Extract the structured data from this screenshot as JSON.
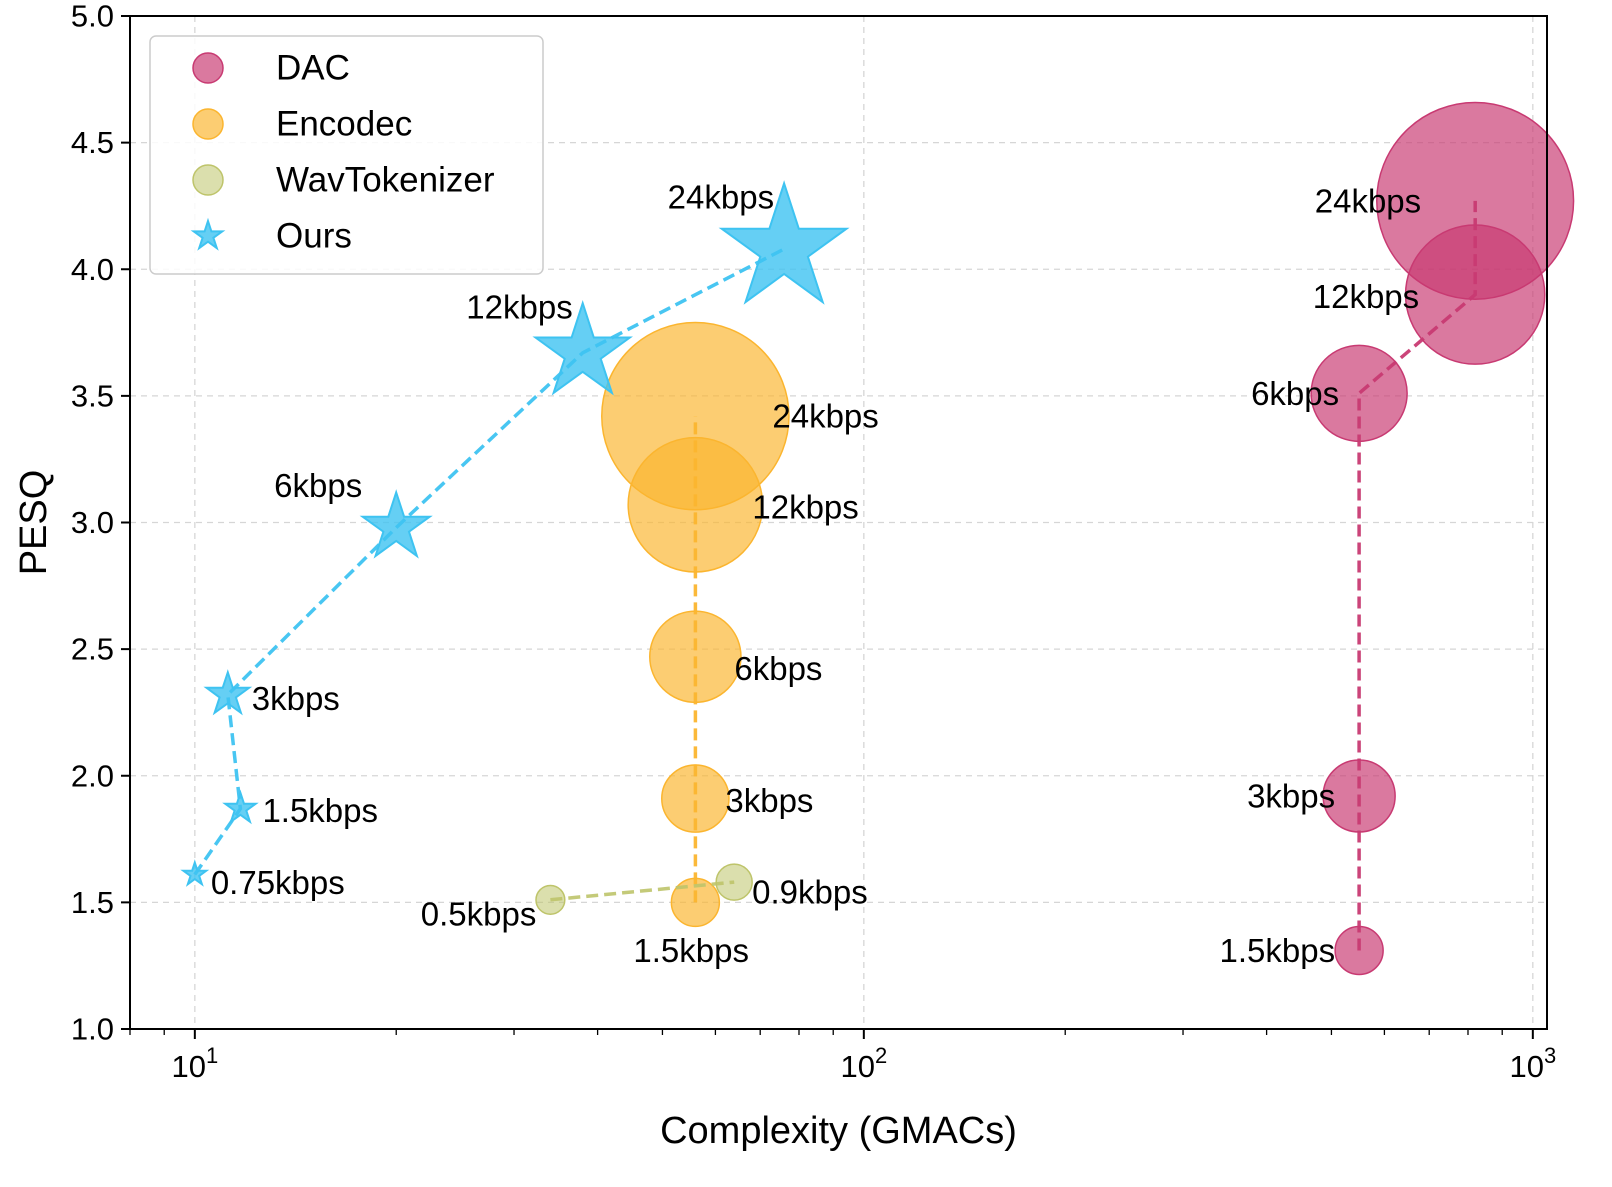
{
  "chart_data": {
    "type": "scatter",
    "title": "",
    "xlabel": "Complexity (GMACs)",
    "ylabel": "PESQ",
    "xscale": "log",
    "xlim": [
      8,
      1050
    ],
    "ylim": [
      1.0,
      5.0
    ],
    "yticks": [
      "1.0",
      "1.5",
      "2.0",
      "2.5",
      "3.0",
      "3.5",
      "4.0",
      "4.5",
      "5.0"
    ],
    "xticks": [
      {
        "value": 10,
        "base": "10",
        "exp": "1"
      },
      {
        "value": 100,
        "base": "10",
        "exp": "2"
      },
      {
        "value": 1000,
        "base": "10",
        "exp": "3"
      }
    ],
    "grid": true,
    "legend_position": "top-left",
    "series": [
      {
        "name": "DAC",
        "marker": "circle",
        "color": "#c83a72",
        "line": true,
        "points": [
          {
            "x": 550,
            "y": 1.31,
            "label": "1.5kbps",
            "size": 1.0
          },
          {
            "x": 550,
            "y": 1.92,
            "label": "3kbps",
            "size": 1.5
          },
          {
            "x": 550,
            "y": 3.51,
            "label": "6kbps",
            "size": 2.0
          },
          {
            "x": 820,
            "y": 3.9,
            "label": "12kbps",
            "size": 2.9
          },
          {
            "x": 820,
            "y": 4.27,
            "label": "24kbps",
            "size": 4.1
          }
        ]
      },
      {
        "name": "Encodec",
        "marker": "circle",
        "color": "#fbb52f",
        "line": true,
        "points": [
          {
            "x": 56,
            "y": 1.5,
            "label": "1.5kbps",
            "size": 1.0
          },
          {
            "x": 56,
            "y": 1.91,
            "label": "3kbps",
            "size": 1.4
          },
          {
            "x": 56,
            "y": 2.47,
            "label": "6kbps",
            "size": 1.9
          },
          {
            "x": 56,
            "y": 3.07,
            "label": "12kbps",
            "size": 2.8
          },
          {
            "x": 56,
            "y": 3.42,
            "label": "24kbps",
            "size": 3.9
          }
        ]
      },
      {
        "name": "WavTokenizer",
        "marker": "circle",
        "color": "#bec46a",
        "line": true,
        "points": [
          {
            "x": 34,
            "y": 1.51,
            "label": "0.5kbps",
            "size": 0.6
          },
          {
            "x": 64,
            "y": 1.58,
            "label": "0.9kbps",
            "size": 0.75
          }
        ]
      },
      {
        "name": "Ours",
        "marker": "star",
        "color": "#3ec3f1",
        "line": true,
        "points": [
          {
            "x": 10.0,
            "y": 1.61,
            "label": "0.75kbps",
            "size": 0.75
          },
          {
            "x": 11.7,
            "y": 1.87,
            "label": "1.5kbps",
            "size": 1.0
          },
          {
            "x": 11.2,
            "y": 2.32,
            "label": "3kbps",
            "size": 1.4
          },
          {
            "x": 20,
            "y": 2.98,
            "label": "6kbps",
            "size": 2.2
          },
          {
            "x": 38,
            "y": 3.67,
            "label": "12kbps",
            "size": 3.1
          },
          {
            "x": 76,
            "y": 4.08,
            "label": "24kbps",
            "size": 4.1
          }
        ]
      }
    ]
  }
}
